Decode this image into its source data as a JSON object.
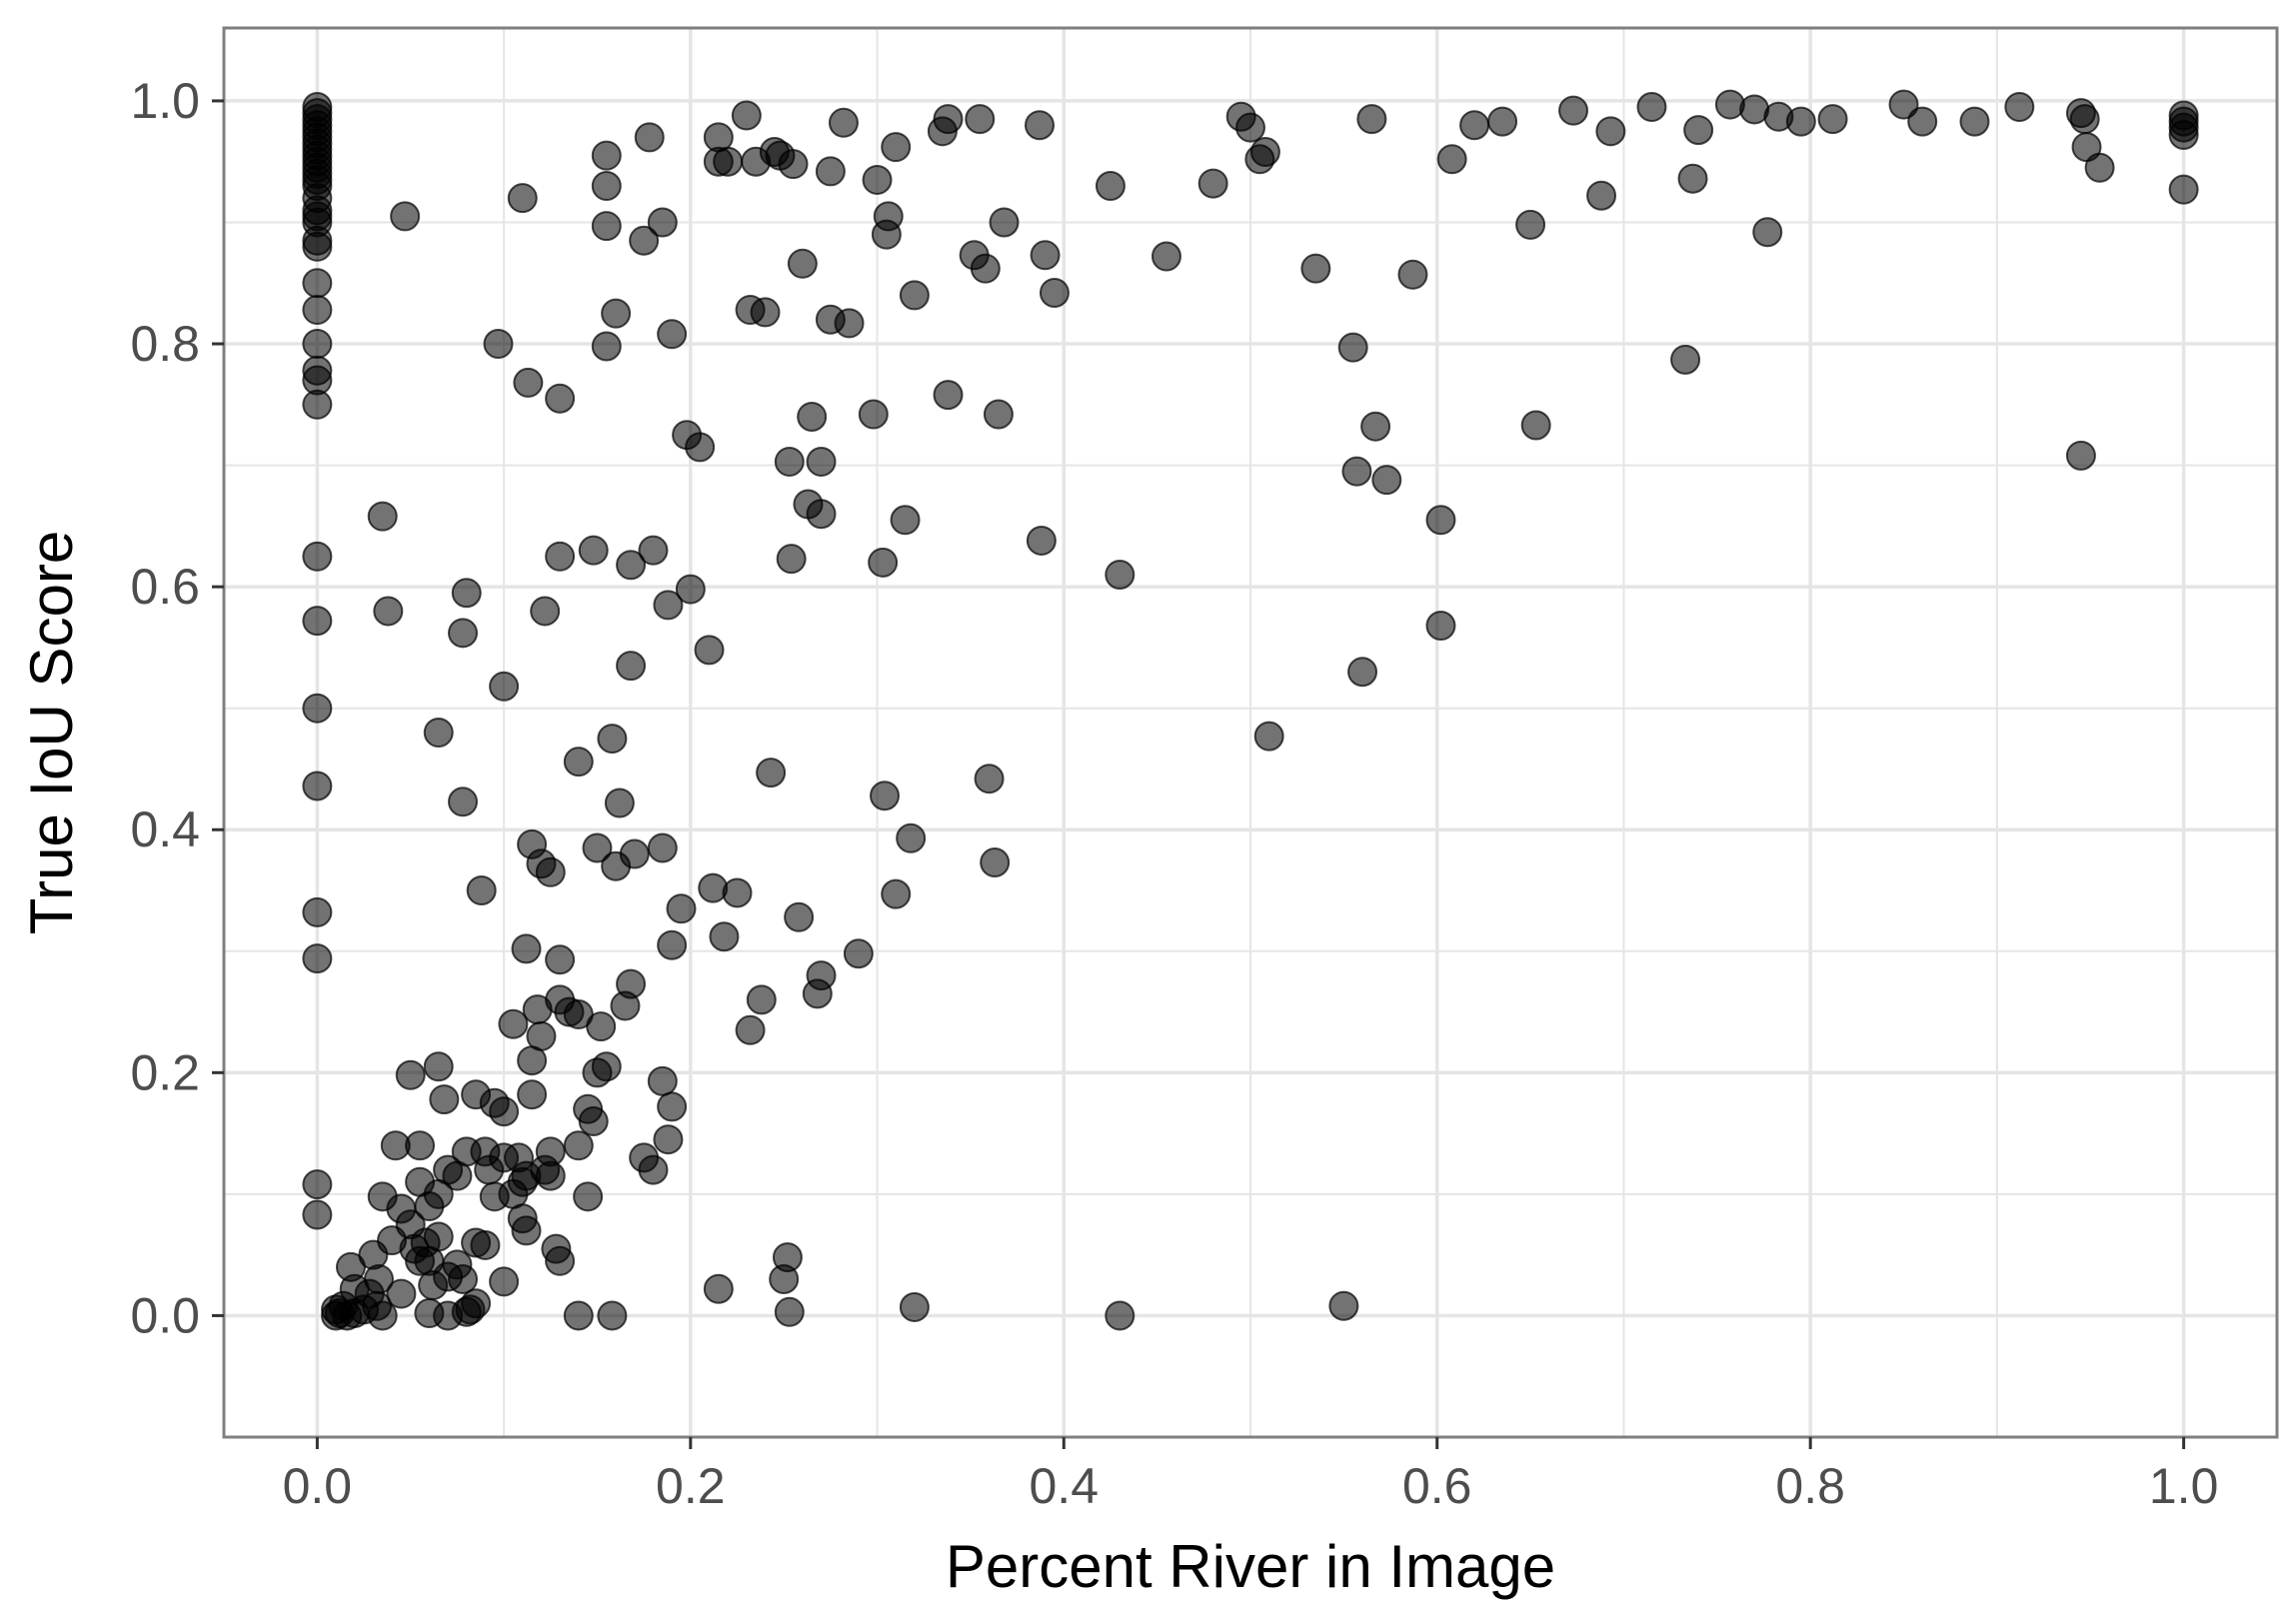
{
  "chart_data": {
    "type": "scatter",
    "title": "",
    "xlabel": "Percent River in Image",
    "ylabel": "True IoU Score",
    "xlim": [
      -0.05,
      1.05
    ],
    "ylim": [
      -0.1,
      1.06
    ],
    "xticks": [
      0.0,
      0.2,
      0.4,
      0.6,
      0.8,
      1.0
    ],
    "yticks": [
      0.0,
      0.2,
      0.4,
      0.6,
      0.8,
      1.0
    ],
    "tick_labels_x": [
      "0.0",
      "0.2",
      "0.4",
      "0.6",
      "0.8",
      "1.0"
    ],
    "tick_labels_y": [
      "0.0",
      "0.2",
      "0.4",
      "0.6",
      "0.8",
      "1.0"
    ],
    "grid": true,
    "legend": "none",
    "colors": {
      "point": "#000000",
      "point_opacity": 0.55,
      "grid": "#e5e5e5",
      "panel_border": "#7f7f7f",
      "tick_text": "#4d4d4d"
    },
    "points": [
      [
        0,
        0.995
      ],
      [
        0,
        0.99
      ],
      [
        0,
        0.985
      ],
      [
        0,
        0.98
      ],
      [
        0,
        0.975
      ],
      [
        0,
        0.97
      ],
      [
        0,
        0.965
      ],
      [
        0,
        0.96
      ],
      [
        0,
        0.955
      ],
      [
        0,
        0.95
      ],
      [
        0,
        0.945
      ],
      [
        0,
        0.94
      ],
      [
        0,
        0.935
      ],
      [
        0,
        0.93
      ],
      [
        0,
        0.92
      ],
      [
        0,
        0.91
      ],
      [
        0,
        0.905
      ],
      [
        0,
        0.9
      ],
      [
        0,
        0.885
      ],
      [
        0,
        0.88
      ],
      [
        0,
        0.85
      ],
      [
        0,
        0.828
      ],
      [
        0,
        0.8
      ],
      [
        0,
        0.778
      ],
      [
        0,
        0.77
      ],
      [
        0,
        0.75
      ],
      [
        0,
        0.625
      ],
      [
        0,
        0.572
      ],
      [
        0,
        0.5
      ],
      [
        0,
        0.436
      ],
      [
        0,
        0.332
      ],
      [
        0,
        0.294
      ],
      [
        0,
        0.108
      ],
      [
        0,
        0.083
      ],
      [
        0.01,
        0.005
      ],
      [
        0.012,
        0.002
      ],
      [
        0.014,
        0.008
      ],
      [
        0.016,
        0.0
      ],
      [
        0.02,
        0.022
      ],
      [
        0.025,
        0.005
      ],
      [
        0.018,
        0.04
      ],
      [
        0.03,
        0.05
      ],
      [
        0.033,
        0.03
      ],
      [
        0.035,
        0.0
      ],
      [
        0.04,
        0.062
      ],
      [
        0.045,
        0.018
      ],
      [
        0.05,
        0.075
      ],
      [
        0.052,
        0.055
      ],
      [
        0.055,
        0.045
      ],
      [
        0.058,
        0.06
      ],
      [
        0.06,
        0.002
      ],
      [
        0.062,
        0.025
      ],
      [
        0.065,
        0.065
      ],
      [
        0.07,
        0.0
      ],
      [
        0.075,
        0.042
      ],
      [
        0.078,
        0.03
      ],
      [
        0.08,
        0.003
      ],
      [
        0.082,
        0.005
      ],
      [
        0.085,
        0.06
      ],
      [
        0.09,
        0.058
      ],
      [
        0.055,
        0.11
      ],
      [
        0.06,
        0.09
      ],
      [
        0.065,
        0.1
      ],
      [
        0.07,
        0.12
      ],
      [
        0.042,
        0.14
      ],
      [
        0.055,
        0.14
      ],
      [
        0.035,
        0.098
      ],
      [
        0.045,
        0.088
      ],
      [
        0.05,
        0.198
      ],
      [
        0.065,
        0.205
      ],
      [
        0.068,
        0.178
      ],
      [
        0.075,
        0.115
      ],
      [
        0.08,
        0.135
      ],
      [
        0.085,
        0.182
      ],
      [
        0.09,
        0.135
      ],
      [
        0.095,
        0.175
      ],
      [
        0.095,
        0.098
      ],
      [
        0.1,
        0.13
      ],
      [
        0.1,
        0.168
      ],
      [
        0.1,
        0.028
      ],
      [
        0.105,
        0.24
      ],
      [
        0.11,
        0.08
      ],
      [
        0.11,
        0.11
      ],
      [
        0.112,
        0.115
      ],
      [
        0.112,
        0.07
      ],
      [
        0.115,
        0.21
      ],
      [
        0.115,
        0.182
      ],
      [
        0.118,
        0.252
      ],
      [
        0.12,
        0.23
      ],
      [
        0.125,
        0.115
      ],
      [
        0.125,
        0.135
      ],
      [
        0.128,
        0.055
      ],
      [
        0.13,
        0.045
      ],
      [
        0.13,
        0.26
      ],
      [
        0.13,
        0.293
      ],
      [
        0.135,
        0.25
      ],
      [
        0.14,
        0.14
      ],
      [
        0.14,
        0.248
      ],
      [
        0.145,
        0.17
      ],
      [
        0.145,
        0.098
      ],
      [
        0.148,
        0.16
      ],
      [
        0.15,
        0.2
      ],
      [
        0.152,
        0.238
      ],
      [
        0.155,
        0.205
      ],
      [
        0.165,
        0.255
      ],
      [
        0.168,
        0.273
      ],
      [
        0.175,
        0.13
      ],
      [
        0.18,
        0.12
      ],
      [
        0.185,
        0.193
      ],
      [
        0.188,
        0.145
      ],
      [
        0.19,
        0.172
      ],
      [
        0.14,
        0.0
      ],
      [
        0.158,
        0.0
      ],
      [
        0.01,
        0.0
      ],
      [
        0.035,
        0.658
      ],
      [
        0.038,
        0.58
      ],
      [
        0.047,
        0.905
      ],
      [
        0.065,
        0.48
      ],
      [
        0.078,
        0.423
      ],
      [
        0.078,
        0.562
      ],
      [
        0.08,
        0.595
      ],
      [
        0.088,
        0.35
      ],
      [
        0.097,
        0.8
      ],
      [
        0.1,
        0.518
      ],
      [
        0.11,
        0.92
      ],
      [
        0.112,
        0.302
      ],
      [
        0.113,
        0.768
      ],
      [
        0.115,
        0.388
      ],
      [
        0.12,
        0.372
      ],
      [
        0.122,
        0.58
      ],
      [
        0.125,
        0.365
      ],
      [
        0.13,
        0.625
      ],
      [
        0.13,
        0.755
      ],
      [
        0.14,
        0.456
      ],
      [
        0.148,
        0.63
      ],
      [
        0.15,
        0.385
      ],
      [
        0.155,
        0.93
      ],
      [
        0.155,
        0.897
      ],
      [
        0.155,
        0.955
      ],
      [
        0.155,
        0.798
      ],
      [
        0.158,
        0.475
      ],
      [
        0.16,
        0.37
      ],
      [
        0.16,
        0.825
      ],
      [
        0.162,
        0.422
      ],
      [
        0.168,
        0.618
      ],
      [
        0.168,
        0.535
      ],
      [
        0.17,
        0.38
      ],
      [
        0.175,
        0.885
      ],
      [
        0.178,
        0.97
      ],
      [
        0.18,
        0.63
      ],
      [
        0.185,
        0.9
      ],
      [
        0.185,
        0.385
      ],
      [
        0.188,
        0.585
      ],
      [
        0.19,
        0.808
      ],
      [
        0.19,
        0.305
      ],
      [
        0.195,
        0.335
      ],
      [
        0.198,
        0.725
      ],
      [
        0.2,
        0.598
      ],
      [
        0.205,
        0.715
      ],
      [
        0.21,
        0.548
      ],
      [
        0.212,
        0.352
      ],
      [
        0.215,
        0.95
      ],
      [
        0.215,
        0.97
      ],
      [
        0.218,
        0.312
      ],
      [
        0.22,
        0.95
      ],
      [
        0.225,
        0.348
      ],
      [
        0.23,
        0.988
      ],
      [
        0.232,
        0.235
      ],
      [
        0.232,
        0.828
      ],
      [
        0.235,
        0.95
      ],
      [
        0.238,
        0.26
      ],
      [
        0.24,
        0.826
      ],
      [
        0.243,
        0.447
      ],
      [
        0.245,
        0.958
      ],
      [
        0.248,
        0.955
      ],
      [
        0.25,
        0.03
      ],
      [
        0.252,
        0.048
      ],
      [
        0.253,
        0.703
      ],
      [
        0.254,
        0.623
      ],
      [
        0.255,
        0.948
      ],
      [
        0.258,
        0.328
      ],
      [
        0.26,
        0.866
      ],
      [
        0.263,
        0.668
      ],
      [
        0.265,
        0.74
      ],
      [
        0.268,
        0.265
      ],
      [
        0.27,
        0.703
      ],
      [
        0.27,
        0.66
      ],
      [
        0.27,
        0.28
      ],
      [
        0.275,
        0.942
      ],
      [
        0.275,
        0.82
      ],
      [
        0.282,
        0.982
      ],
      [
        0.285,
        0.817
      ],
      [
        0.29,
        0.298
      ],
      [
        0.298,
        0.742
      ],
      [
        0.3,
        0.935
      ],
      [
        0.303,
        0.62
      ],
      [
        0.304,
        0.428
      ],
      [
        0.305,
        0.89
      ],
      [
        0.306,
        0.905
      ],
      [
        0.31,
        0.962
      ],
      [
        0.31,
        0.347
      ],
      [
        0.315,
        0.655
      ],
      [
        0.318,
        0.393
      ],
      [
        0.32,
        0.84
      ],
      [
        0.335,
        0.975
      ],
      [
        0.338,
        0.985
      ],
      [
        0.338,
        0.758
      ],
      [
        0.352,
        0.873
      ],
      [
        0.355,
        0.985
      ],
      [
        0.358,
        0.862
      ],
      [
        0.36,
        0.442
      ],
      [
        0.363,
        0.373
      ],
      [
        0.365,
        0.742
      ],
      [
        0.368,
        0.9
      ],
      [
        0.387,
        0.98
      ],
      [
        0.388,
        0.638
      ],
      [
        0.39,
        0.873
      ],
      [
        0.395,
        0.842
      ],
      [
        0.425,
        0.93
      ],
      [
        0.43,
        0.61
      ],
      [
        0.455,
        0.872
      ],
      [
        0.48,
        0.932
      ],
      [
        0.495,
        0.987
      ],
      [
        0.5,
        0.978
      ],
      [
        0.505,
        0.952
      ],
      [
        0.508,
        0.958
      ],
      [
        0.51,
        0.477
      ],
      [
        0.535,
        0.862
      ],
      [
        0.55,
        0.008
      ],
      [
        0.555,
        0.797
      ],
      [
        0.557,
        0.695
      ],
      [
        0.56,
        0.53
      ],
      [
        0.565,
        0.985
      ],
      [
        0.567,
        0.732
      ],
      [
        0.573,
        0.688
      ],
      [
        0.587,
        0.857
      ],
      [
        0.602,
        0.655
      ],
      [
        0.602,
        0.568
      ],
      [
        0.608,
        0.952
      ],
      [
        0.62,
        0.98
      ],
      [
        0.635,
        0.983
      ],
      [
        0.65,
        0.898
      ],
      [
        0.653,
        0.733
      ],
      [
        0.673,
        0.992
      ],
      [
        0.688,
        0.922
      ],
      [
        0.693,
        0.975
      ],
      [
        0.715,
        0.995
      ],
      [
        0.733,
        0.787
      ],
      [
        0.737,
        0.936
      ],
      [
        0.74,
        0.976
      ],
      [
        0.757,
        0.997
      ],
      [
        0.77,
        0.993
      ],
      [
        0.777,
        0.892
      ],
      [
        0.783,
        0.987
      ],
      [
        0.795,
        0.983
      ],
      [
        0.812,
        0.985
      ],
      [
        0.85,
        0.997
      ],
      [
        0.86,
        0.983
      ],
      [
        0.888,
        0.983
      ],
      [
        0.912,
        0.995
      ],
      [
        0.945,
        0.99
      ],
      [
        0.945,
        0.708
      ],
      [
        0.947,
        0.985
      ],
      [
        0.948,
        0.962
      ],
      [
        0.955,
        0.945
      ],
      [
        1.0,
        0.988
      ],
      [
        1.0,
        0.983
      ],
      [
        1.0,
        0.978
      ],
      [
        1.0,
        0.972
      ],
      [
        1.0,
        0.927
      ],
      [
        0.02,
        0.002
      ],
      [
        0.06,
        0.045
      ],
      [
        0.07,
        0.032
      ],
      [
        0.085,
        0.01
      ],
      [
        0.092,
        0.12
      ],
      [
        0.105,
        0.1
      ],
      [
        0.108,
        0.13
      ],
      [
        0.122,
        0.12
      ],
      [
        0.032,
        0.008
      ],
      [
        0.028,
        0.018
      ],
      [
        0.32,
        0.007
      ],
      [
        0.43,
        0.0
      ],
      [
        0.253,
        0.003
      ],
      [
        0.215,
        0.022
      ]
    ]
  }
}
